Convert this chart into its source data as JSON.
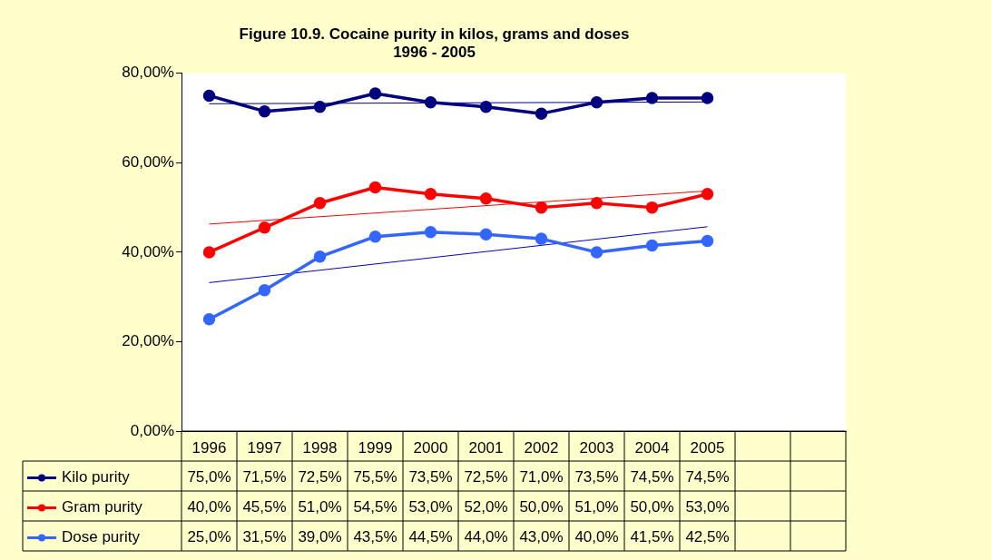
{
  "chart_data": {
    "type": "line",
    "title": "Figure 10.9. Cocaine purity in kilos, grams and doses",
    "subtitle": "1996 - 2005",
    "categories": [
      "1996",
      "1997",
      "1998",
      "1999",
      "2000",
      "2001",
      "2002",
      "2003",
      "2004",
      "2005",
      null,
      null
    ],
    "ylim": [
      0,
      80
    ],
    "yticks": [
      {
        "value": 0,
        "label": "0,00%"
      },
      {
        "value": 20,
        "label": "20,00%"
      },
      {
        "value": 40,
        "label": "40,00%"
      },
      {
        "value": 60,
        "label": "60,00%"
      },
      {
        "value": 80,
        "label": "80,00%"
      }
    ],
    "grid": false,
    "legend": "bottom",
    "marker": "circle",
    "line_style": "solid",
    "series": [
      {
        "name": "Kilo purity",
        "color": "#000080",
        "values": [
          75,
          71.5,
          72.5,
          75.5,
          73.5,
          72.5,
          71,
          73.5,
          74.5,
          74.5,
          null,
          null
        ],
        "value_labels": [
          "75,0%",
          "71,5%",
          "72,5%",
          "75,5%",
          "73,5%",
          "72,5%",
          "71,0%",
          "73,5%",
          "74,5%",
          "74,5%",
          null,
          null
        ]
      },
      {
        "name": "Gram purity",
        "color": "#ff0000",
        "values": [
          40,
          45.5,
          51,
          54.5,
          53,
          52,
          50,
          51,
          50,
          53,
          null,
          null
        ],
        "value_labels": [
          "40,0%",
          "45,5%",
          "51,0%",
          "54,5%",
          "53,0%",
          "52,0%",
          "50,0%",
          "51,0%",
          "50,0%",
          "53,0%",
          null,
          null
        ]
      },
      {
        "name": "Dose purity",
        "color": "#3366ff",
        "values": [
          25,
          31.5,
          39,
          43.5,
          44.5,
          44,
          43,
          40,
          41.5,
          42.5,
          null,
          null
        ],
        "value_labels": [
          "25,0%",
          "31,5%",
          "39,0%",
          "43,5%",
          "44,5%",
          "44,0%",
          "43,0%",
          "40,0%",
          "41,5%",
          "42,5%",
          null,
          null
        ]
      },
      {
        "type": "line",
        "marker": "none",
        "color": "#000080",
        "values": [
          73.2,
          null,
          null,
          null,
          null,
          null,
          null,
          null,
          null,
          73.6,
          null,
          null
        ]
      },
      {
        "type": "line",
        "marker": "none",
        "color": "#ff0000",
        "values": [
          46.3,
          null,
          null,
          null,
          null,
          null,
          null,
          null,
          null,
          53.7,
          null,
          null
        ]
      },
      {
        "type": "line",
        "marker": "none",
        "color": "#0000cc",
        "values": [
          33.2,
          null,
          null,
          null,
          null,
          null,
          null,
          null,
          null,
          45.7,
          null,
          null
        ]
      }
    ]
  }
}
